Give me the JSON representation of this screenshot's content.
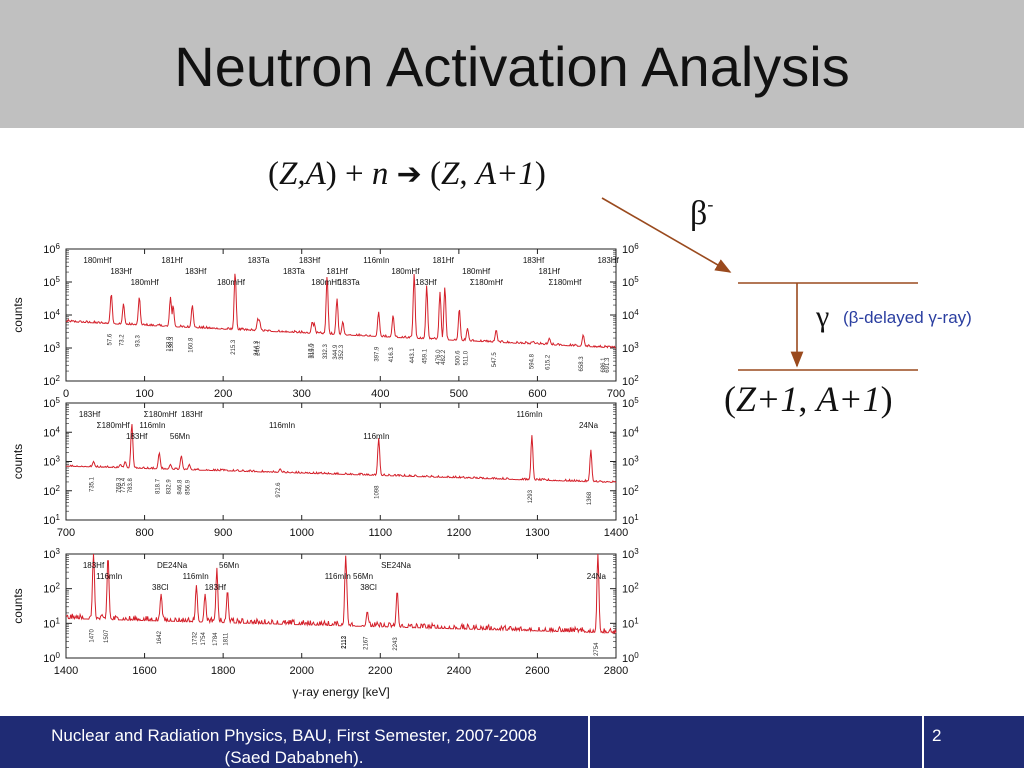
{
  "slide": {
    "title": "Neutron Activation Analysis",
    "footer_line1": "Nuclear and Radiation Physics, BAU, First Semester, 2007-2008",
    "footer_line2": "(Saed Dababneh).",
    "page_number": "2"
  },
  "reaction": {
    "open1": "(",
    "Z_A": "Z,A",
    "close1": ")",
    "plus": "+",
    "n": "n",
    "arrow": "➔",
    "open2": "(",
    "Z": "Z",
    "comma": ",",
    "A_plus_1": "A+1",
    "close2": ")"
  },
  "decay": {
    "beta": "β",
    "beta_sup": "-",
    "gamma": "γ",
    "gamma_note": "(β-delayed γ-ray)",
    "product_open": "(",
    "product_Z": "Z+1",
    "product_comma": ",",
    "product_A": "A+1",
    "product_close": ")"
  },
  "chart_data": [
    {
      "type": "line",
      "title": "",
      "xlabel": "",
      "ylabel": "counts",
      "xlim": [
        0,
        700
      ],
      "ylim_log10": [
        2,
        6
      ],
      "y_tick_labels": [
        "10^2",
        "10^3",
        "10^4",
        "10^5",
        "10^6"
      ],
      "x_ticks": [
        0,
        100,
        200,
        300,
        400,
        500,
        600,
        700
      ],
      "color": "#d4202a",
      "peaks": [
        {
          "x": 57.6,
          "log10y": 4.65
        },
        {
          "x": 73.2,
          "log10y": 4.35
        },
        {
          "x": 93.3,
          "log10y": 4.55
        },
        {
          "x": 133.0,
          "log10y": 4.55
        },
        {
          "x": 136.3,
          "log10y": 4.3
        },
        {
          "x": 160.8,
          "log10y": 4.3
        },
        {
          "x": 215.3,
          "log10y": 5.3
        },
        {
          "x": 244.3,
          "log10y": 3.9
        },
        {
          "x": 246.1,
          "log10y": 3.85
        },
        {
          "x": 313.5,
          "log10y": 3.8
        },
        {
          "x": 315.9,
          "log10y": 3.75
        },
        {
          "x": 332.3,
          "log10y": 5.2
        },
        {
          "x": 344.9,
          "log10y": 4.5
        },
        {
          "x": 352.3,
          "log10y": 3.8
        },
        {
          "x": 397.9,
          "log10y": 4.1
        },
        {
          "x": 416.3,
          "log10y": 4.0
        },
        {
          "x": 443.1,
          "log10y": 5.25
        },
        {
          "x": 459.1,
          "log10y": 4.9
        },
        {
          "x": 476.0,
          "log10y": 4.7
        },
        {
          "x": 482.2,
          "log10y": 4.85
        },
        {
          "x": 500.6,
          "log10y": 4.2
        },
        {
          "x": 511.0,
          "log10y": 3.6
        },
        {
          "x": 547.5,
          "log10y": 3.55
        },
        {
          "x": 594.8,
          "log10y": 3.2
        },
        {
          "x": 615.2,
          "log10y": 3.3
        },
        {
          "x": 658.3,
          "log10y": 3.4
        },
        {
          "x": 686.1,
          "log10y": 2.95
        },
        {
          "x": 691.3,
          "log10y": 2.9
        }
      ],
      "peak_labels": [
        "57.6",
        "73.2",
        "93.3",
        "133.0",
        "136.3",
        "160.8",
        "215.3",
        "244.3",
        "246.1",
        "313.5",
        "315.9",
        "332.3",
        "344.9",
        "352.3",
        "397.9",
        "416.3",
        "443.1",
        "459.1",
        "476.0",
        "482.2",
        "500.6",
        "511.0",
        "547.5",
        "594.8",
        "615.2",
        "658.3",
        "686.1",
        "691.3"
      ],
      "isotope_labels": [
        {
          "text": "180mHf",
          "x": 40
        },
        {
          "text": "183Hf",
          "x": 70
        },
        {
          "text": "180mHf",
          "x": 100
        },
        {
          "text": "181Hf",
          "x": 135
        },
        {
          "text": "183Hf",
          "x": 165
        },
        {
          "text": "180mHf",
          "x": 210
        },
        {
          "text": "183Ta",
          "x": 245
        },
        {
          "text": "183Ta",
          "x": 290
        },
        {
          "text": "180mHf",
          "x": 330
        },
        {
          "text": "183Hf",
          "x": 310
        },
        {
          "text": "181Hf",
          "x": 345
        },
        {
          "text": "183Ta",
          "x": 360
        },
        {
          "text": "116mIn",
          "x": 395
        },
        {
          "text": "180mHf",
          "x": 432
        },
        {
          "text": "183Hf",
          "x": 458
        },
        {
          "text": "181Hf",
          "x": 480
        },
        {
          "text": "180mHf",
          "x": 522
        },
        {
          "text": "Σ180mHf",
          "x": 535
        },
        {
          "text": "183Hf",
          "x": 595
        },
        {
          "text": "181Hf",
          "x": 615
        },
        {
          "text": "Σ180mHf",
          "x": 635
        },
        {
          "text": "183Hf",
          "x": 690
        }
      ]
    },
    {
      "type": "line",
      "title": "",
      "xlabel": "",
      "ylabel": "counts",
      "xlim": [
        700,
        1400
      ],
      "ylim_log10": [
        1,
        5
      ],
      "y_tick_labels": [
        "10^1",
        "10^2",
        "10^3",
        "10^4",
        "10^5"
      ],
      "x_ticks": [
        700,
        800,
        900,
        1000,
        1100,
        1200,
        1300,
        1400
      ],
      "color": "#d4202a",
      "peaks": [
        {
          "x": 735.1,
          "log10y": 3.0
        },
        {
          "x": 769.3,
          "log10y": 2.9
        },
        {
          "x": 775.4,
          "log10y": 3.0
        },
        {
          "x": 783.8,
          "log10y": 4.3
        },
        {
          "x": 818.7,
          "log10y": 3.3
        },
        {
          "x": 832.9,
          "log10y": 2.9
        },
        {
          "x": 846.8,
          "log10y": 3.2
        },
        {
          "x": 856.9,
          "log10y": 2.9
        },
        {
          "x": 972.6,
          "log10y": 2.75
        },
        {
          "x": 1098,
          "log10y": 3.8
        },
        {
          "x": 1293,
          "log10y": 3.9
        },
        {
          "x": 1368,
          "log10y": 3.4
        }
      ],
      "peak_labels": [
        "735.1",
        "769.3",
        "775.4",
        "783.8",
        "818.7",
        "832.9",
        "846.8",
        "856.9",
        "972.6",
        "1098",
        "1293",
        "1368"
      ],
      "isotope_labels": [
        {
          "text": "183Hf",
          "x": 730
        },
        {
          "text": "Σ180mHf",
          "x": 760
        },
        {
          "text": "183Hf",
          "x": 790
        },
        {
          "text": "Σ180mHf",
          "x": 820
        },
        {
          "text": "116mIn",
          "x": 810
        },
        {
          "text": "56Mn",
          "x": 845
        },
        {
          "text": "183Hf",
          "x": 860
        },
        {
          "text": "116mIn",
          "x": 975
        },
        {
          "text": "116mIn",
          "x": 1095
        },
        {
          "text": "116mIn",
          "x": 1290
        },
        {
          "text": "24Na",
          "x": 1365
        }
      ]
    },
    {
      "type": "line",
      "title": "",
      "xlabel": "γ-ray energy [keV]",
      "ylabel": "counts",
      "xlim": [
        1400,
        2800
      ],
      "ylim_log10": [
        0,
        3
      ],
      "y_tick_labels": [
        "10^0",
        "10^1",
        "10^2",
        "10^3"
      ],
      "x_ticks": [
        1400,
        1600,
        1800,
        2000,
        2200,
        2400,
        2600,
        2800
      ],
      "color": "#d4202a",
      "peaks": [
        {
          "x": 1470,
          "log10y": 3.05
        },
        {
          "x": 1507,
          "log10y": 2.95
        },
        {
          "x": 1642,
          "log10y": 1.85
        },
        {
          "x": 1732,
          "log10y": 2.1
        },
        {
          "x": 1754,
          "log10y": 1.85
        },
        {
          "x": 1784,
          "log10y": 2.6
        },
        {
          "x": 1811,
          "log10y": 1.95
        },
        {
          "x": 2112,
          "log10y": 2.95
        },
        {
          "x": 2113,
          "log10y": 2.6
        },
        {
          "x": 2167,
          "log10y": 1.35
        },
        {
          "x": 2243,
          "log10y": 1.95
        },
        {
          "x": 2754,
          "log10y": 3.05
        }
      ],
      "peak_labels": [
        "1470",
        "1507",
        "1642",
        "1732",
        "1754",
        "1784",
        "1811",
        "2112",
        "2113",
        "2167",
        "2243",
        "2754"
      ],
      "isotope_labels": [
        {
          "text": "183Hf",
          "x": 1470
        },
        {
          "text": "116mIn",
          "x": 1510
        },
        {
          "text": "38Cl",
          "x": 1640
        },
        {
          "text": "DE24Na",
          "x": 1670
        },
        {
          "text": "116mIn",
          "x": 1730
        },
        {
          "text": "183Hf",
          "x": 1780
        },
        {
          "text": "56Mn",
          "x": 1815
        },
        {
          "text": "116mIn 56Mn",
          "x": 2120
        },
        {
          "text": "38Cl",
          "x": 2170
        },
        {
          "text": "SE24Na",
          "x": 2240
        },
        {
          "text": "24Na",
          "x": 2750
        }
      ]
    }
  ]
}
